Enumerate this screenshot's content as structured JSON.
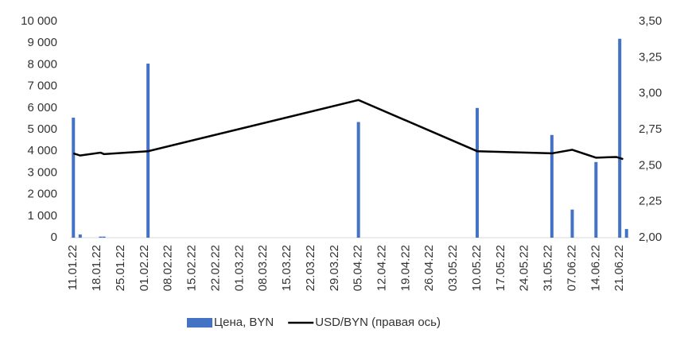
{
  "chart_data": {
    "type": "bar-line",
    "xticks": [
      "11.01.22",
      "18.01.22",
      "25.01.22",
      "01.02.22",
      "08.02.22",
      "15.02.22",
      "22.02.22",
      "01.03.22",
      "08.03.22",
      "15.03.22",
      "22.03.22",
      "29.03.22",
      "05.04.22",
      "12.04.22",
      "19.04.22",
      "26.04.22",
      "03.05.22",
      "10.05.22",
      "17.05.22",
      "24.05.22",
      "31.05.22",
      "07.06.22",
      "14.06.22",
      "21.06.22"
    ],
    "xlim": [
      "10.01.22",
      "24.06.22"
    ],
    "ylim": [
      0,
      10000
    ],
    "yticks": [
      0,
      {
        "value": 1000,
        "label": "1 000"
      },
      {
        "value": 2000,
        "label": "2 000"
      },
      {
        "value": 3000,
        "label": "3 000"
      },
      {
        "value": 4000,
        "label": "4 000"
      },
      {
        "value": 5000,
        "label": "5 000"
      },
      {
        "value": 6000,
        "label": "6 000"
      },
      {
        "value": 7000,
        "label": "7 000"
      },
      {
        "value": 8000,
        "label": "8 000"
      },
      {
        "value": 9000,
        "label": "9 000"
      },
      {
        "value": 10000,
        "label": "10 000"
      }
    ],
    "y2lim": [
      2,
      3.5
    ],
    "y2ticks": [
      {
        "value": 2,
        "label": "2,00"
      },
      {
        "value": 2.25,
        "label": "2,25"
      },
      {
        "value": 2.5,
        "label": "2,50"
      },
      {
        "value": 2.75,
        "label": "2,75"
      },
      {
        "value": 3,
        "label": "3,00"
      },
      {
        "value": 3.25,
        "label": "3,25"
      },
      {
        "value": 3.5,
        "label": "3,50"
      }
    ],
    "series": [
      {
        "name": "Цена, BYN",
        "type": "bar",
        "color": "#4472c4",
        "x": [
          "11.01.22",
          "13.01.22",
          "19.01.22",
          "20.01.22",
          "02.02.22",
          "05.04.22",
          "10.05.22",
          "01.06.22",
          "07.06.22",
          "14.06.22",
          "21.06.22",
          "23.06.22"
        ],
        "values": [
          5550,
          150,
          50,
          50,
          8050,
          5350,
          6000,
          4750,
          1300,
          3500,
          9200,
          400
        ]
      },
      {
        "name": "USD/BYN (правая ось)",
        "type": "line",
        "color": "#000000",
        "axis": "y2",
        "x": [
          "11.01.22",
          "13.01.22",
          "19.01.22",
          "20.01.22",
          "02.02.22",
          "05.04.22",
          "10.05.22",
          "01.06.22",
          "07.06.22",
          "14.06.22",
          "20.06.22",
          "22.06.22"
        ],
        "values": [
          2.585,
          2.57,
          2.59,
          2.58,
          2.6,
          2.955,
          2.6,
          2.585,
          2.61,
          2.555,
          2.56,
          2.545
        ]
      }
    ]
  }
}
